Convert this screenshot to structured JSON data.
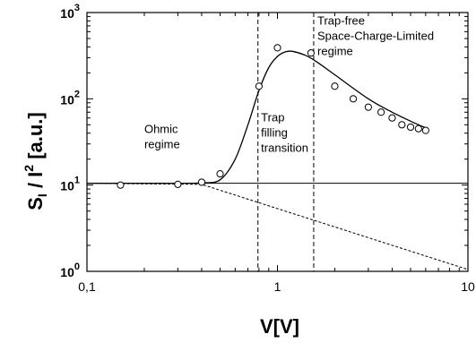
{
  "chart_data": {
    "type": "scatter",
    "xscale": "log",
    "yscale": "log",
    "xlim": [
      0.1,
      10
    ],
    "ylim": [
      1,
      1000
    ],
    "xlabel": "V[V]",
    "ylabel": {
      "s": "S",
      "sub": "I",
      "slash": " / I",
      "sup": "2",
      "unit": " [a.u.]"
    },
    "x_ticks": [
      {
        "value": 0.1,
        "label": "0,1"
      },
      {
        "value": 1,
        "label": "1"
      },
      {
        "value": 10,
        "label": "10"
      }
    ],
    "y_ticks": [
      {
        "value": 1,
        "base": "10",
        "exp": "0"
      },
      {
        "value": 10,
        "base": "10",
        "exp": "1"
      },
      {
        "value": 100,
        "base": "10",
        "exp": "2"
      },
      {
        "value": 1000,
        "base": "10",
        "exp": "3"
      }
    ],
    "series": [
      {
        "style": "open-circle-markers",
        "x": [
          0.15,
          0.3,
          0.4,
          0.5,
          0.8,
          1.0,
          1.5,
          2.0,
          2.5,
          3.0,
          3.5,
          4.0,
          4.5,
          5.0,
          5.5,
          6.0
        ],
        "y": [
          10,
          10.2,
          10.8,
          13.5,
          140,
          390,
          340,
          140,
          100,
          80,
          70,
          60,
          50,
          47,
          45,
          43
        ]
      },
      {
        "style": "solid-fit-curve",
        "x": [
          0.1,
          0.3,
          0.4,
          0.5,
          0.6,
          0.7,
          0.8,
          0.9,
          1.0,
          1.1,
          1.2,
          1.4,
          1.6,
          2.0,
          3.0,
          4.0,
          5.0,
          6.0
        ],
        "y": [
          10.5,
          10.5,
          10.6,
          11.5,
          20,
          50,
          125,
          230,
          310,
          350,
          355,
          320,
          270,
          190,
          100,
          70,
          55,
          46
        ]
      },
      {
        "style": "solid-horizontal-line",
        "x": [
          0.1,
          10
        ],
        "y": [
          10.5,
          10.5
        ]
      },
      {
        "style": "dashed-line",
        "x": [
          0.1,
          0.4,
          10
        ],
        "y": [
          10.5,
          10.2,
          1.05
        ]
      }
    ],
    "vertical_dashed_lines": [
      0.79,
      1.55
    ],
    "annotations": [
      {
        "lines": [
          "Ohmic",
          "regime"
        ],
        "x": 0.2,
        "y": 40
      },
      {
        "lines": [
          "Trap",
          "filling",
          "transition"
        ],
        "x": 0.82,
        "y": 55
      },
      {
        "lines": [
          "Trap-free",
          "Space-Charge-Limited",
          "regime"
        ],
        "x": 1.62,
        "y": 720
      }
    ],
    "grid": false
  }
}
